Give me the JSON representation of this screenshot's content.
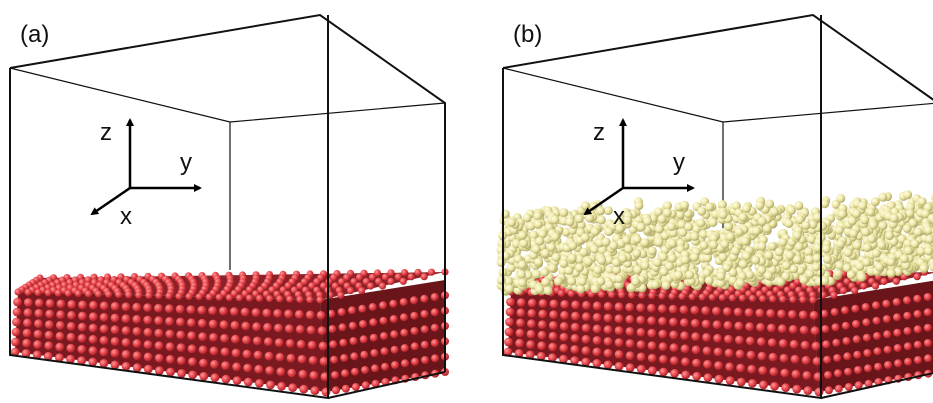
{
  "panels": [
    {
      "label": "(a)",
      "axis_labels": [
        "z",
        "y",
        "x"
      ]
    },
    {
      "label": "(b)",
      "axis_labels": [
        "z",
        "y",
        "x"
      ]
    }
  ]
}
